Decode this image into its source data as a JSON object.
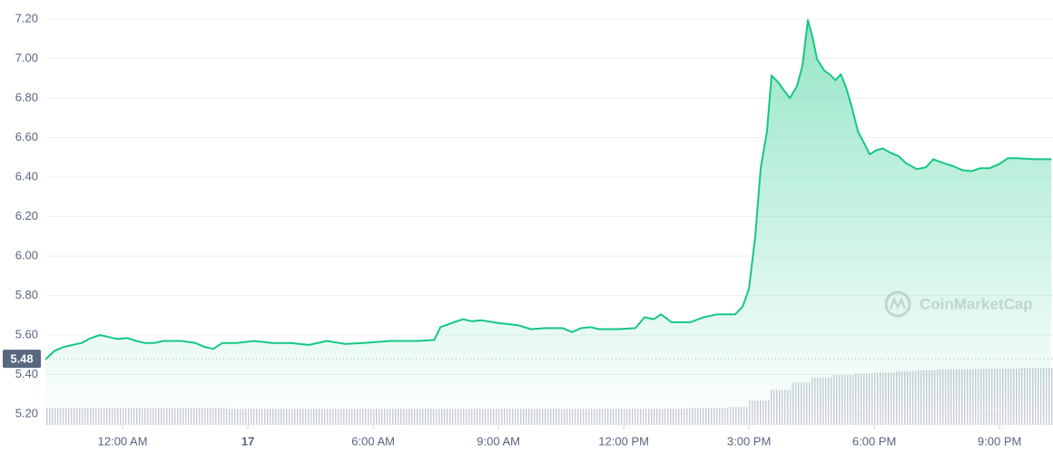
{
  "chart_data": {
    "type": "area",
    "watermark": "CoinMarketCap",
    "xlim": [
      -1.85,
      22.28
    ],
    "xticks": [
      {
        "value": 0,
        "label": "12:00 AM"
      },
      {
        "value": 3,
        "label": "17"
      },
      {
        "value": 6,
        "label": "6:00 AM"
      },
      {
        "value": 9,
        "label": "9:00 AM"
      },
      {
        "value": 12,
        "label": "12:00 PM"
      },
      {
        "value": 15,
        "label": "3:00 PM"
      },
      {
        "value": 18,
        "label": "6:00 PM"
      },
      {
        "value": 21,
        "label": "9:00 PM"
      }
    ],
    "ylim": [
      5.2,
      7.2
    ],
    "yticks": [
      {
        "value": 5.2,
        "label": "5.20"
      },
      {
        "value": 5.4,
        "label": "5.40"
      },
      {
        "value": 5.6,
        "label": "5.60"
      },
      {
        "value": 5.8,
        "label": "5.80"
      },
      {
        "value": 6.0,
        "label": "6.00"
      },
      {
        "value": 6.2,
        "label": "6.20"
      },
      {
        "value": 6.4,
        "label": "6.40"
      },
      {
        "value": 6.6,
        "label": "6.60"
      },
      {
        "value": 6.8,
        "label": "6.80"
      },
      {
        "value": 7.0,
        "label": "7.00"
      },
      {
        "value": 7.2,
        "label": "7.20"
      }
    ],
    "grid": true,
    "reference_line": 5.48,
    "x": [
      -1.85,
      -1.63,
      -1.41,
      -1.2,
      -0.98,
      -0.76,
      -0.54,
      -0.33,
      -0.11,
      0.11,
      0.33,
      0.54,
      0.76,
      0.98,
      1.41,
      1.74,
      1.96,
      2.17,
      2.39,
      2.72,
      3.15,
      3.59,
      4.02,
      4.46,
      4.89,
      5.33,
      5.76,
      6.41,
      7.07,
      7.46,
      7.61,
      7.93,
      8.15,
      8.37,
      8.59,
      9.02,
      9.46,
      9.78,
      10.11,
      10.54,
      10.76,
      10.98,
      11.2,
      11.41,
      11.85,
      12.28,
      12.5,
      12.72,
      12.89,
      13.15,
      13.59,
      13.91,
      14.24,
      14.67,
      14.85,
      15.0,
      15.15,
      15.28,
      15.43,
      15.54,
      15.72,
      15.83,
      15.98,
      16.15,
      16.28,
      16.41,
      16.52,
      16.63,
      16.8,
      16.96,
      17.07,
      17.2,
      17.33,
      17.46,
      17.61,
      17.76,
      17.89,
      18.04,
      18.2,
      18.37,
      18.59,
      18.76,
      19.02,
      19.24,
      19.41,
      19.67,
      19.89,
      20.11,
      20.33,
      20.54,
      20.76,
      20.98,
      21.2,
      21.41,
      21.85,
      22.24
    ],
    "series": [
      {
        "color": "#16c784",
        "values": [
          5.476,
          5.52,
          5.54,
          5.55,
          5.56,
          5.585,
          5.6,
          5.59,
          5.58,
          5.585,
          5.57,
          5.56,
          5.56,
          5.57,
          5.57,
          5.56,
          5.54,
          5.53,
          5.56,
          5.56,
          5.57,
          5.56,
          5.56,
          5.55,
          5.57,
          5.555,
          5.56,
          5.57,
          5.57,
          5.575,
          5.64,
          5.665,
          5.68,
          5.67,
          5.675,
          5.66,
          5.65,
          5.63,
          5.635,
          5.635,
          5.615,
          5.635,
          5.64,
          5.63,
          5.63,
          5.635,
          5.69,
          5.68,
          5.705,
          5.665,
          5.665,
          5.69,
          5.705,
          5.705,
          5.745,
          5.835,
          6.1,
          6.445,
          6.63,
          6.915,
          6.875,
          6.84,
          6.8,
          6.86,
          6.965,
          7.195,
          7.11,
          6.997,
          6.94,
          6.915,
          6.89,
          6.92,
          6.85,
          6.755,
          6.63,
          6.57,
          6.515,
          6.535,
          6.545,
          6.525,
          6.505,
          6.47,
          6.44,
          6.45,
          6.49,
          6.47,
          6.455,
          6.435,
          6.43,
          6.445,
          6.445,
          6.465,
          6.495,
          6.495,
          6.49,
          6.49
        ]
      }
    ],
    "volume": {
      "x": [
        -1.75,
        -1.25,
        -0.75,
        -0.25,
        0.25,
        0.75,
        1.25,
        1.75,
        2.25,
        2.75,
        3.25,
        3.75,
        4.25,
        4.75,
        5.25,
        5.75,
        6.25,
        6.75,
        7.25,
        7.75,
        8.25,
        8.75,
        9.25,
        9.75,
        10.25,
        10.75,
        11.25,
        11.75,
        12.25,
        12.75,
        13.25,
        13.75,
        14.25,
        14.75,
        15.25,
        15.75,
        16.25,
        16.75,
        17.25,
        17.75,
        18.25,
        18.75,
        19.25,
        19.75,
        20.25,
        20.75,
        21.25,
        21.75,
        22.25
      ],
      "values": [
        21,
        21,
        21,
        21,
        21,
        21,
        21,
        21,
        21,
        20,
        20,
        20,
        20,
        20,
        20,
        20,
        20,
        20,
        20,
        20,
        20,
        20,
        20,
        20,
        20,
        20,
        20,
        20,
        20,
        20,
        20,
        21,
        21,
        22,
        30,
        43,
        52,
        58,
        61,
        63,
        64,
        66,
        67,
        68,
        68,
        69,
        69,
        70,
        70
      ]
    }
  }
}
